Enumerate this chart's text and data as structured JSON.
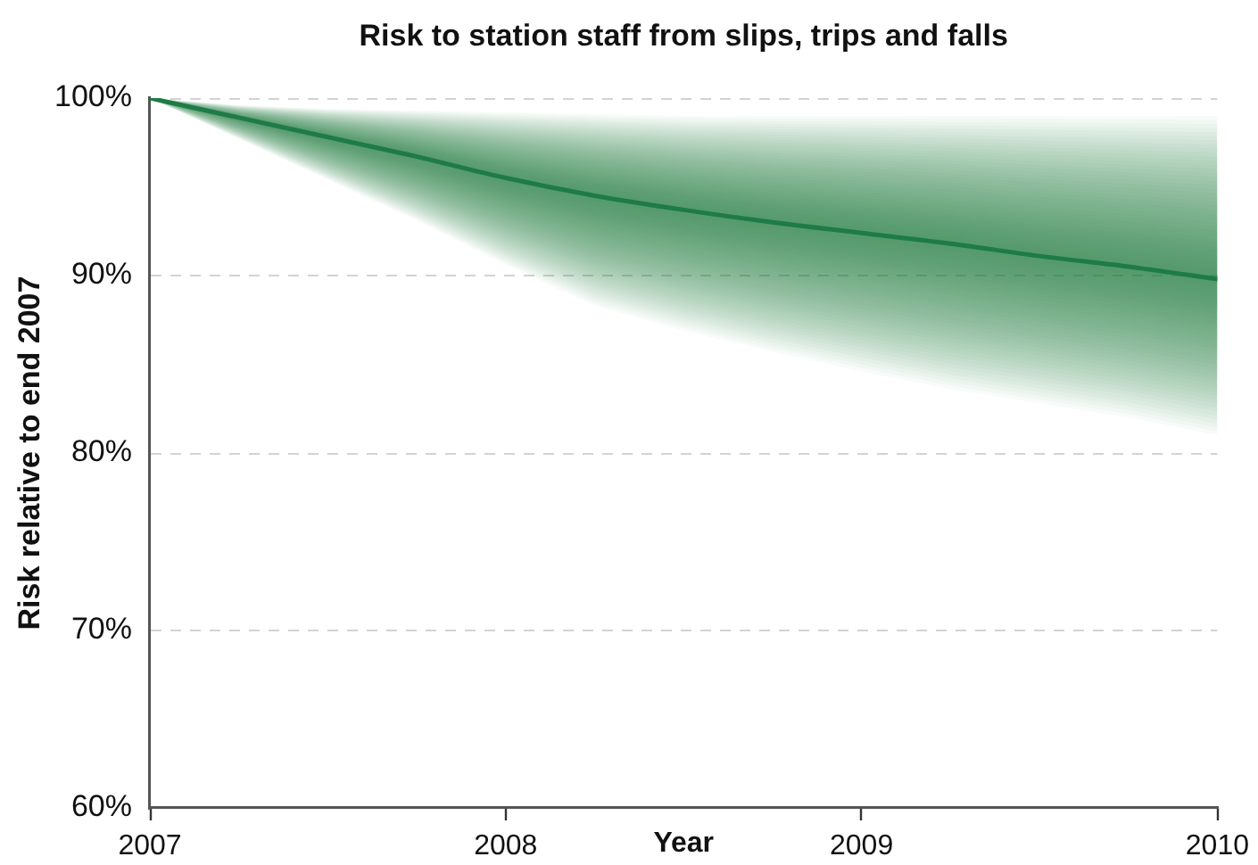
{
  "chart_data": {
    "type": "line",
    "title": "Risk to station staff from slips, trips and falls",
    "xlabel": "Year",
    "ylabel": "Risk relative to end 2007",
    "x": [
      2007,
      2007.25,
      2007.5,
      2007.75,
      2008,
      2008.25,
      2008.5,
      2008.75,
      2009,
      2009.25,
      2009.5,
      2009.75,
      2010
    ],
    "series": [
      {
        "color": "#1e7b47",
        "values": [
          100,
          98.9,
          97.8,
          96.7,
          95.5,
          94.5,
          93.7,
          93.0,
          92.4,
          91.8,
          91.1,
          90.5,
          89.8
        ],
        "lower": [
          100,
          97.7,
          95.4,
          93.1,
          90.6,
          88.3,
          86.9,
          85.7,
          84.6,
          83.6,
          82.8,
          82.0,
          81.0
        ],
        "upper": [
          100,
          99.6,
          99.4,
          99.3,
          99.2,
          99.1,
          99.0,
          99.0,
          99.0,
          99.0,
          99.0,
          99.0,
          99.0
        ]
      }
    ],
    "xlim": [
      2007,
      2010
    ],
    "xticks": [
      2007,
      2008,
      2009,
      2010
    ],
    "ylim": [
      60,
      100
    ],
    "yticks": [
      {
        "value": 60,
        "label": "60%"
      },
      {
        "value": 70,
        "label": "70%"
      },
      {
        "value": 80,
        "label": "80%"
      },
      {
        "value": 90,
        "label": "90%"
      },
      {
        "value": 100,
        "label": "100%"
      }
    ],
    "grid": "y",
    "marker": "none",
    "line_style": "solid"
  }
}
